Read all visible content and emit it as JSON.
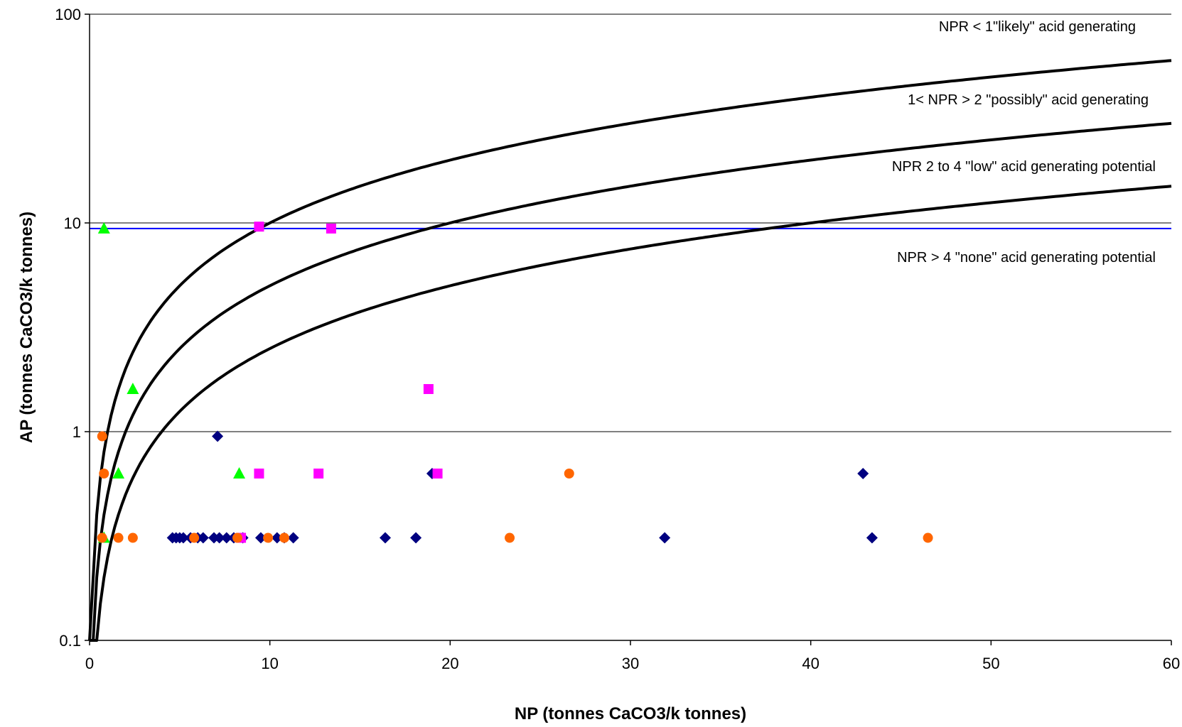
{
  "chart_data": {
    "type": "scatter",
    "title": "",
    "xlabel": "NP (tonnes CaCO3/k tonnes)",
    "ylabel": "AP (tonnes CaCO3/k tonnes)",
    "xlim": [
      0,
      60
    ],
    "ylim": [
      0.1,
      100
    ],
    "yscale": "log",
    "grid": "horizontal major gridlines",
    "legend": "none",
    "x_ticks": [
      0,
      10,
      20,
      30,
      40,
      50,
      60
    ],
    "x_tick_labels": [
      "0",
      "10",
      "20",
      "30",
      "40",
      "50",
      "60"
    ],
    "y_ticks": [
      0.1,
      1,
      10,
      100
    ],
    "y_tick_labels": [
      "0.1",
      "1",
      "10",
      "100"
    ],
    "reference_line": {
      "y": 9.4,
      "color": "#0000ff"
    },
    "npr_curves": [
      {
        "ratio": 1,
        "color": "#000000"
      },
      {
        "ratio": 2,
        "color": "#000000"
      },
      {
        "ratio": 4,
        "color": "#000000"
      }
    ],
    "annotations": [
      "NPR < 1\"likely\" acid generating",
      "1< NPR > 2 \"possibly\" acid generating",
      "NPR 2 to 4 \"low\" acid generating potential",
      "NPR > 4 \"none\" acid generating  potential"
    ],
    "series": [
      {
        "marker": "diamond",
        "color": "#000080",
        "points": [
          [
            4.6,
            0.31
          ],
          [
            4.8,
            0.31
          ],
          [
            5.0,
            0.31
          ],
          [
            5.2,
            0.31
          ],
          [
            5.6,
            0.31
          ],
          [
            6.0,
            0.31
          ],
          [
            6.3,
            0.31
          ],
          [
            6.9,
            0.31
          ],
          [
            7.2,
            0.31
          ],
          [
            7.6,
            0.31
          ],
          [
            8.0,
            0.31
          ],
          [
            8.5,
            0.31
          ],
          [
            9.5,
            0.31
          ],
          [
            10.4,
            0.31
          ],
          [
            10.8,
            0.31
          ],
          [
            11.3,
            0.31
          ],
          [
            16.4,
            0.31
          ],
          [
            18.1,
            0.31
          ],
          [
            31.9,
            0.31
          ],
          [
            43.4,
            0.31
          ],
          [
            7.1,
            0.95
          ],
          [
            19.0,
            0.63
          ],
          [
            42.9,
            0.63
          ]
        ]
      },
      {
        "marker": "square",
        "color": "#ff00ff",
        "points": [
          [
            9.4,
            9.6
          ],
          [
            13.4,
            9.4
          ],
          [
            18.8,
            1.6
          ],
          [
            9.4,
            0.63
          ],
          [
            12.7,
            0.63
          ],
          [
            19.3,
            0.63
          ],
          [
            8.4,
            0.31
          ]
        ]
      },
      {
        "marker": "triangle",
        "color": "#00ff00",
        "points": [
          [
            0.8,
            9.4
          ],
          [
            2.4,
            1.6
          ],
          [
            1.6,
            0.63
          ],
          [
            8.3,
            0.63
          ],
          [
            0.8,
            0.31
          ]
        ]
      },
      {
        "marker": "circle",
        "color": "#ff6600",
        "points": [
          [
            0.7,
            0.95
          ],
          [
            0.8,
            0.63
          ],
          [
            0.7,
            0.31
          ],
          [
            1.6,
            0.31
          ],
          [
            2.4,
            0.31
          ],
          [
            5.8,
            0.31
          ],
          [
            8.2,
            0.31
          ],
          [
            9.9,
            0.31
          ],
          [
            10.8,
            0.31
          ],
          [
            23.3,
            0.31
          ],
          [
            26.6,
            0.63
          ],
          [
            46.5,
            0.31
          ]
        ]
      }
    ]
  }
}
